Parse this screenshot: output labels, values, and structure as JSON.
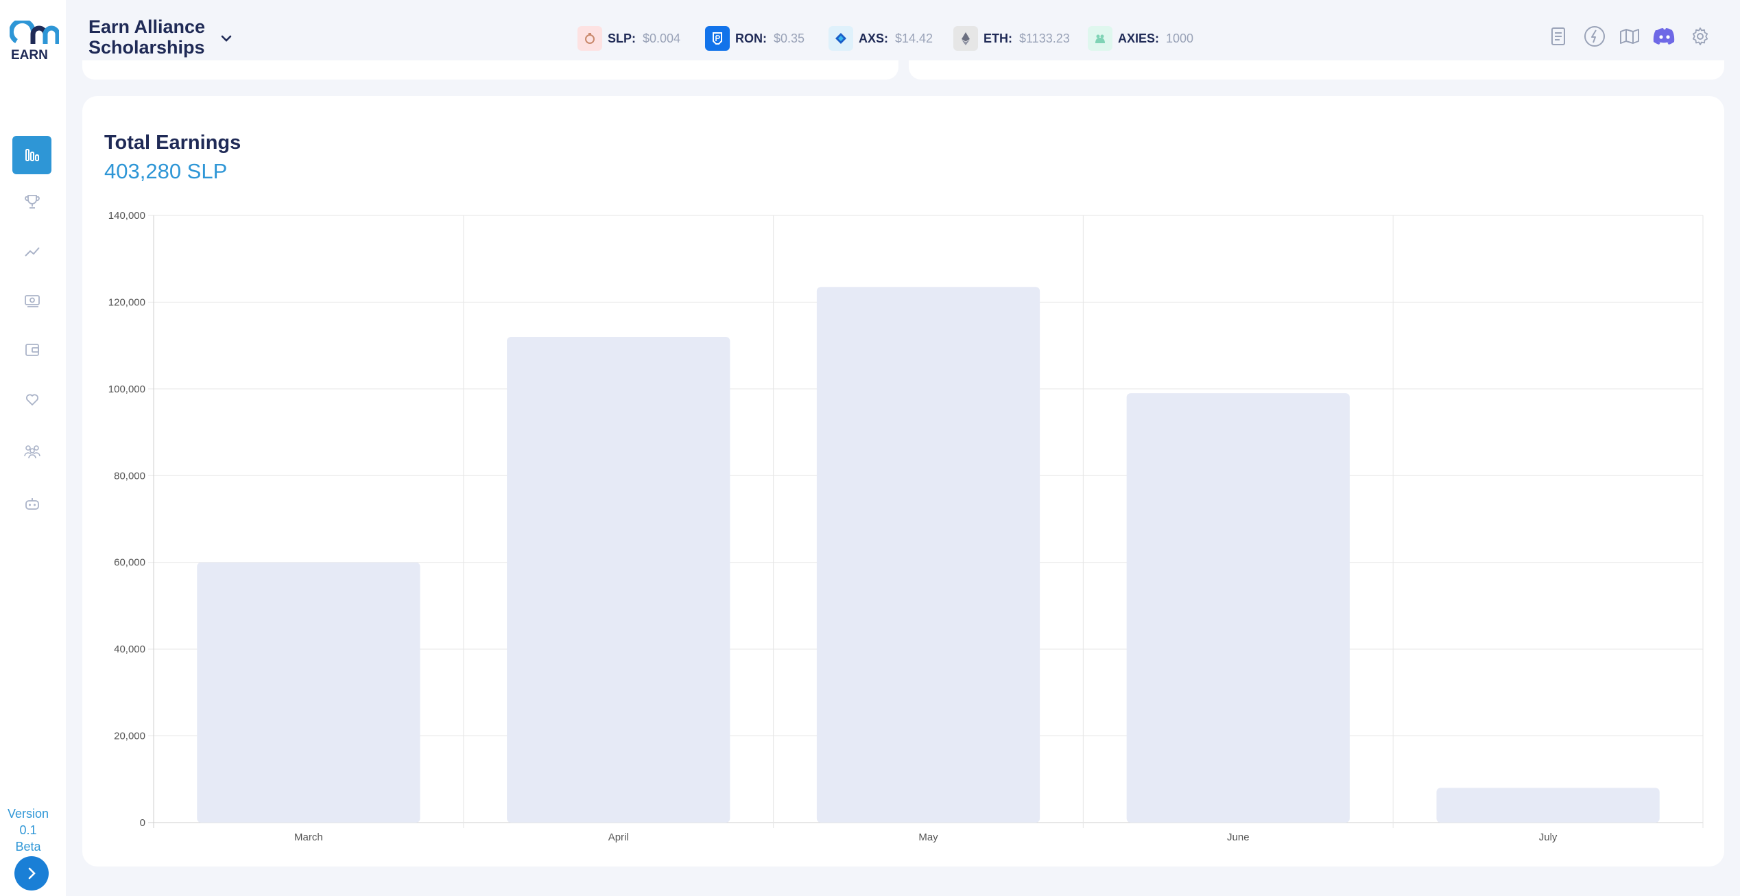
{
  "app": {
    "org_title": "Earn Alliance Scholarships",
    "logo_text": "EARN"
  },
  "tickers": [
    {
      "name": "SLP:",
      "value": "$0.004",
      "icon": "slp-potion-icon",
      "color": "#fde2e2"
    },
    {
      "name": "RON:",
      "value": "$0.35",
      "icon": "ronin-icon",
      "color": "#1273ea"
    },
    {
      "name": "AXS:",
      "value": "$14.42",
      "icon": "axs-icon",
      "color": "#dff1fb"
    },
    {
      "name": "ETH:",
      "value": "$1133.23",
      "icon": "eth-icon",
      "color": "#e6e6e6"
    },
    {
      "name": "AXIES:",
      "value": "1000",
      "icon": "axie-icon",
      "color": "#dff7ee"
    }
  ],
  "top_icons": [
    "document-icon",
    "lightning-icon",
    "map-icon",
    "discord-icon",
    "gear-icon"
  ],
  "nav": [
    {
      "name": "dashboard",
      "icon": "bar-chart-icon",
      "active": true
    },
    {
      "name": "leaderboard",
      "icon": "trophy-icon",
      "active": false
    },
    {
      "name": "analytics",
      "icon": "trend-line-icon",
      "active": false
    },
    {
      "name": "payments",
      "icon": "cash-icon",
      "active": false
    },
    {
      "name": "wallet",
      "icon": "wallet-icon",
      "active": false
    },
    {
      "name": "favorites",
      "icon": "heart-icon",
      "active": false
    },
    {
      "name": "scholars",
      "icon": "group-icon",
      "active": false
    },
    {
      "name": "bot",
      "icon": "robot-icon",
      "active": false
    }
  ],
  "sidebar": {
    "version_line1": "Version",
    "version_line2": "0.1",
    "version_line3": "Beta"
  },
  "card": {
    "title": "Total Earnings",
    "total": "403,280 SLP"
  },
  "chart_data": {
    "type": "bar",
    "categories": [
      "March",
      "April",
      "May",
      "June",
      "July"
    ],
    "values": [
      60000,
      112000,
      123500,
      99000,
      8000
    ],
    "ylim": [
      0,
      140000
    ],
    "yticks": [
      0,
      20000,
      40000,
      60000,
      80000,
      100000,
      120000,
      140000
    ],
    "ytick_labels": [
      "0",
      "20,000",
      "40,000",
      "60,000",
      "80,000",
      "100,000",
      "120,000",
      "140,000"
    ],
    "grid": true,
    "bar_color": "#e6eaf6",
    "grid_color": "#e6e6e6"
  }
}
